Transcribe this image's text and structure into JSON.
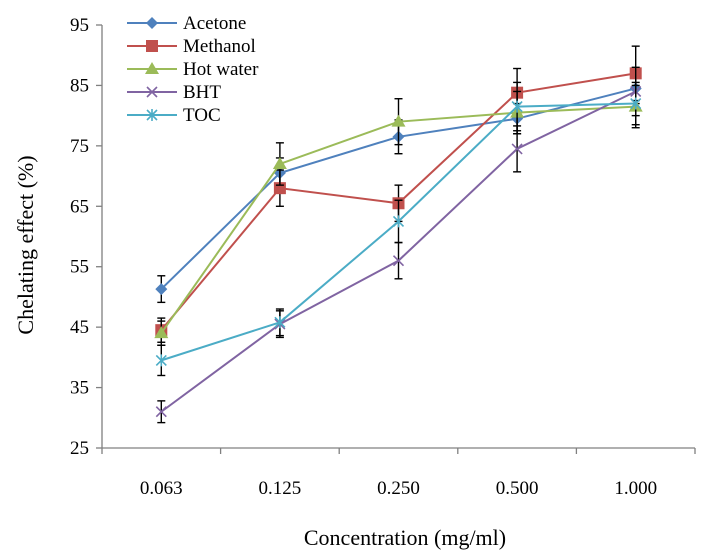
{
  "chart_data": {
    "type": "line",
    "title": "",
    "xlabel": "Concentration (mg/ml)",
    "ylabel": "Chelating effect (%)",
    "categories": [
      "0.063",
      "0.125",
      "0.250",
      "0.500",
      "1.000"
    ],
    "y_ticks": [
      "25",
      "35",
      "45",
      "55",
      "65",
      "75",
      "85",
      "95"
    ],
    "ylim": [
      25,
      95
    ],
    "grid": false,
    "legend": "top-left",
    "series": [
      {
        "name": "Acetone",
        "color": "#4f81bd",
        "marker": "diamond",
        "values": [
          51.3,
          70.5,
          76.5,
          79.5,
          84.5
        ],
        "errors": [
          2.2,
          2.5,
          2.8,
          2.5,
          2.5
        ]
      },
      {
        "name": "Methanol",
        "color": "#c0504d",
        "marker": "square",
        "values": [
          44.5,
          68.0,
          65.5,
          83.8,
          87.0
        ],
        "errors": [
          2.0,
          3.0,
          3.0,
          4.0,
          4.5
        ]
      },
      {
        "name": "Hot water",
        "color": "#9bbb59",
        "marker": "triangle",
        "values": [
          44.0,
          72.0,
          79.0,
          80.5,
          81.5
        ],
        "errors": [
          2.0,
          3.5,
          3.8,
          3.5,
          3.5
        ]
      },
      {
        "name": "BHT",
        "color": "#8064a2",
        "marker": "x",
        "values": [
          31.0,
          45.5,
          56.0,
          74.5,
          84.0
        ],
        "errors": [
          1.8,
          2.2,
          3.0,
          3.8,
          4.0
        ]
      },
      {
        "name": "TOC",
        "color": "#4bacc6",
        "marker": "star",
        "values": [
          39.5,
          45.8,
          62.5,
          81.5,
          82.0
        ],
        "errors": [
          2.5,
          2.2,
          3.5,
          4.0,
          3.5
        ]
      }
    ]
  }
}
